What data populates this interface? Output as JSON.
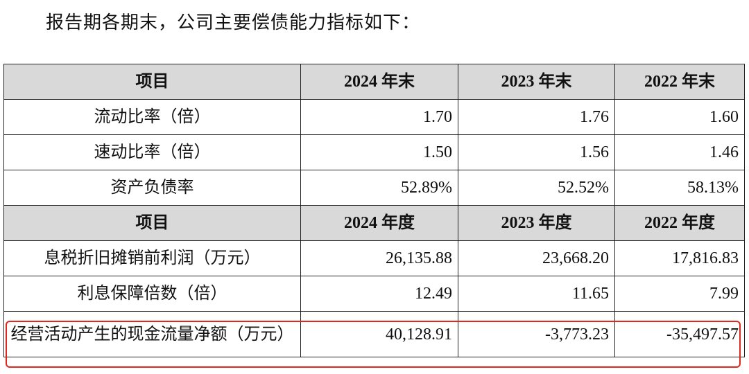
{
  "intro": "报告期各期末，公司主要偿债能力指标如下：",
  "table": {
    "sections": [
      {
        "header": [
          "项目",
          "2024 年末",
          "2023 年末",
          "2022 年末"
        ],
        "rows": [
          [
            "流动比率（倍）",
            "1.70",
            "1.76",
            "1.60"
          ],
          [
            "速动比率（倍）",
            "1.50",
            "1.56",
            "1.46"
          ],
          [
            "资产负债率",
            "52.89%",
            "52.52%",
            "58.13%"
          ]
        ]
      },
      {
        "header": [
          "项目",
          "2024 年度",
          "2023 年度",
          "2022 年度"
        ],
        "rows": [
          [
            "息税折旧摊销前利润（万元）",
            "26,135.88",
            "23,668.20",
            "17,816.83"
          ],
          [
            "利息保障倍数（倍）",
            "12.49",
            "11.65",
            "7.99"
          ],
          [
            "经营活动产生的现金流量净额（万元）",
            "40,128.91",
            "-3,773.23",
            "-35,497.57"
          ]
        ]
      }
    ]
  }
}
